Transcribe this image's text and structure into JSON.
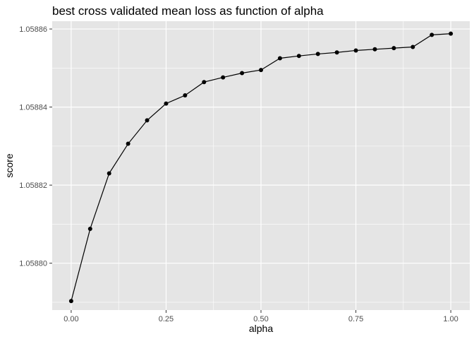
{
  "chart_data": {
    "type": "line",
    "title": "best cross validated mean loss as function of alpha",
    "xlabel": "alpha",
    "ylabel": "score",
    "xlim": [
      -0.05,
      1.05
    ],
    "ylim": [
      1.058788,
      1.058862
    ],
    "x_ticks": [
      0.0,
      0.25,
      0.5,
      0.75,
      1.0
    ],
    "x_tick_labels": [
      "0.00",
      "0.25",
      "0.50",
      "0.75",
      "1.00"
    ],
    "y_ticks": [
      1.0588,
      1.05882,
      1.05884,
      1.05886
    ],
    "y_tick_labels": [
      "1.05880",
      "1.05882",
      "1.05884",
      "1.05886"
    ],
    "grid": true,
    "legend": "none",
    "colors": {
      "panel": "#e5e5e5",
      "grid": "#ffffff",
      "line": "#000000",
      "point": "#000000"
    },
    "series": [
      {
        "x": [
          0.0,
          0.05,
          0.1,
          0.15,
          0.2,
          0.25,
          0.3,
          0.35,
          0.4,
          0.45,
          0.5,
          0.55,
          0.6,
          0.65,
          0.7,
          0.75,
          0.8,
          0.85,
          0.9,
          0.95,
          1.0
        ],
        "values": [
          1.0587903,
          1.0588088,
          1.058823,
          1.0588306,
          1.0588366,
          1.0588409,
          1.058843,
          1.0588464,
          1.0588476,
          1.0588487,
          1.0588495,
          1.0588525,
          1.0588531,
          1.0588536,
          1.058854,
          1.0588545,
          1.0588548,
          1.0588551,
          1.0588554,
          1.0588585,
          1.0588588
        ]
      }
    ]
  }
}
